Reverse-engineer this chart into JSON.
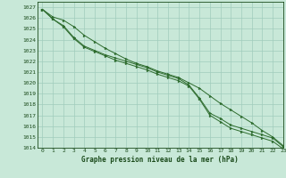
{
  "xlabel": "Graphe pression niveau de la mer (hPa)",
  "ylim": [
    1014,
    1027.5
  ],
  "xlim": [
    -0.5,
    23
  ],
  "background_color": "#c8e8d8",
  "grid_color": "#a0ccbc",
  "line_color": "#2d6b2d",
  "text_color": "#1a4a1a",
  "line1": [
    1026.8,
    1026.1,
    1025.8,
    1025.2,
    1024.4,
    1023.8,
    1023.2,
    1022.7,
    1022.2,
    1021.8,
    1021.5,
    1021.1,
    1020.8,
    1020.5,
    1020.0,
    1019.5,
    1018.8,
    1018.1,
    1017.5,
    1016.9,
    1016.3,
    1015.6,
    1015.0,
    1014.2
  ],
  "line2": [
    1026.8,
    1025.9,
    1025.3,
    1024.2,
    1023.4,
    1023.0,
    1022.6,
    1022.3,
    1022.0,
    1021.7,
    1021.4,
    1021.0,
    1020.7,
    1020.4,
    1019.8,
    1018.6,
    1017.2,
    1016.7,
    1016.1,
    1015.8,
    1015.5,
    1015.2,
    1014.9,
    1014.1
  ],
  "line3": [
    1026.8,
    1025.9,
    1025.2,
    1024.1,
    1023.3,
    1022.9,
    1022.5,
    1022.1,
    1021.8,
    1021.5,
    1021.2,
    1020.8,
    1020.5,
    1020.2,
    1019.7,
    1018.5,
    1017.0,
    1016.4,
    1015.8,
    1015.5,
    1015.2,
    1014.9,
    1014.6,
    1013.9
  ],
  "xticks": [
    0,
    1,
    2,
    3,
    4,
    5,
    6,
    7,
    8,
    9,
    10,
    11,
    12,
    13,
    14,
    15,
    16,
    17,
    18,
    19,
    20,
    21,
    22,
    23
  ],
  "yticks": [
    1014,
    1015,
    1016,
    1017,
    1018,
    1019,
    1020,
    1021,
    1022,
    1023,
    1024,
    1025,
    1026,
    1027
  ]
}
